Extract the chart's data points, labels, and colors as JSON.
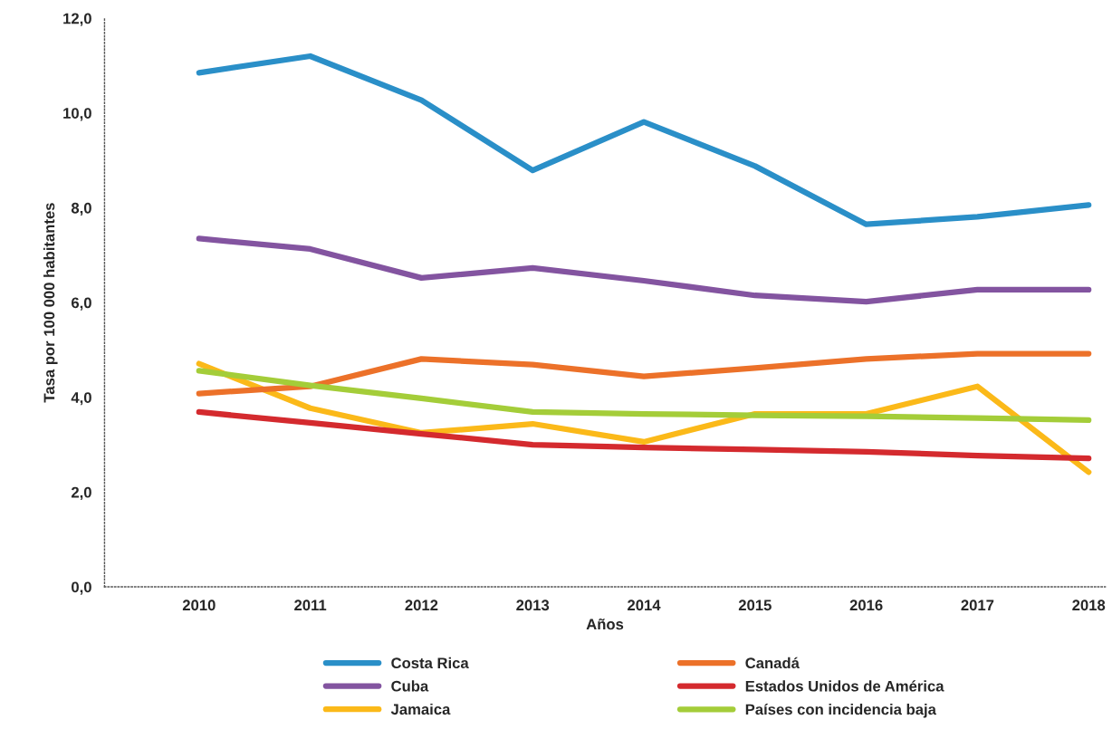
{
  "chart_data": {
    "type": "line",
    "xlabel": "Años",
    "ylabel": "Tasa por 100 000 habitantes",
    "categories": [
      "2010",
      "2011",
      "2012",
      "2013",
      "2014",
      "2015",
      "2016",
      "2017",
      "2018"
    ],
    "ylim": [
      0,
      12
    ],
    "yticks": [
      {
        "value": 0,
        "label": "0,0"
      },
      {
        "value": 2,
        "label": "2,0"
      },
      {
        "value": 4,
        "label": "4,0"
      },
      {
        "value": 6,
        "label": "6,0"
      },
      {
        "value": 8,
        "label": "8,0"
      },
      {
        "value": 10,
        "label": "10,0"
      },
      {
        "value": 12,
        "label": "12,0"
      }
    ],
    "grid": false,
    "legend": "bottom",
    "marker": "none",
    "line_style": "solid",
    "series": [
      {
        "name": "Costa Rica",
        "color": "#2a8fc8",
        "values": [
          10.85,
          11.2,
          10.27,
          8.79,
          9.81,
          8.88,
          7.65,
          7.81,
          8.06
        ]
      },
      {
        "name": "Cuba",
        "color": "#8354a0",
        "values": [
          7.35,
          7.13,
          6.52,
          6.73,
          6.46,
          6.15,
          6.02,
          6.27,
          6.27
        ]
      },
      {
        "name": "Jamaica",
        "color": "#fbb919",
        "values": [
          4.71,
          3.77,
          3.25,
          3.44,
          3.06,
          3.65,
          3.65,
          4.23,
          2.42
        ]
      },
      {
        "name": "Canadá",
        "color": "#ec7129",
        "values": [
          4.08,
          4.23,
          4.81,
          4.69,
          4.44,
          4.62,
          4.81,
          4.92,
          4.92
        ]
      },
      {
        "name": "Estados Unidos de América",
        "color": "#d42a2e",
        "values": [
          3.69,
          3.46,
          3.23,
          3.0,
          2.94,
          2.9,
          2.85,
          2.77,
          2.71
        ]
      },
      {
        "name": "Países con incidencia baja",
        "color": "#a4cd39",
        "values": [
          4.56,
          4.25,
          3.98,
          3.69,
          3.65,
          3.62,
          3.6,
          3.56,
          3.52
        ]
      }
    ]
  }
}
